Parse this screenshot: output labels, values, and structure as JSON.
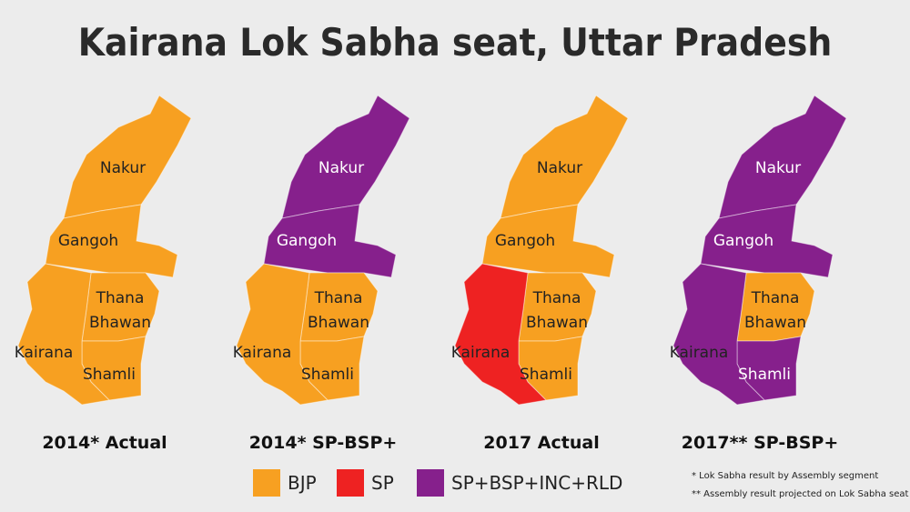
{
  "header": {
    "title": "Kairana Lok Sabha seat, Uttar Pradesh"
  },
  "maps": [
    {
      "caption": "2014* Actual",
      "regions": [
        {
          "label": "Nakur",
          "party": "BJP"
        },
        {
          "label": "Gangoh",
          "party": "BJP"
        },
        {
          "label": "Thana Bhawan",
          "party": "BJP"
        },
        {
          "label": "Shamli",
          "party": "BJP"
        },
        {
          "label": "Kairana",
          "party": "BJP"
        }
      ]
    },
    {
      "caption": "2014* SP-BSP+",
      "regions": [
        {
          "label": "Nakur",
          "party": "SP+BSP+INC+RLD"
        },
        {
          "label": "Gangoh",
          "party": "SP+BSP+INC+RLD"
        },
        {
          "label": "Thana Bhawan",
          "party": "BJP"
        },
        {
          "label": "Shamli",
          "party": "BJP"
        },
        {
          "label": "Kairana",
          "party": "BJP"
        }
      ]
    },
    {
      "caption": "2017 Actual",
      "regions": [
        {
          "label": "Nakur",
          "party": "BJP"
        },
        {
          "label": "Gangoh",
          "party": "BJP"
        },
        {
          "label": "Thana Bhawan",
          "party": "BJP"
        },
        {
          "label": "Shamli",
          "party": "BJP"
        },
        {
          "label": "Kairana",
          "party": "SP"
        }
      ]
    },
    {
      "caption": "2017** SP-BSP+",
      "regions": [
        {
          "label": "Nakur",
          "party": "SP+BSP+INC+RLD"
        },
        {
          "label": "Gangoh",
          "party": "SP+BSP+INC+RLD"
        },
        {
          "label": "Thana Bhawan",
          "party": "BJP"
        },
        {
          "label": "Shamli",
          "party": "SP+BSP+INC+RLD"
        },
        {
          "label": "Kairana",
          "party": "SP+BSP+INC+RLD"
        }
      ]
    }
  ],
  "legend": [
    {
      "label": "BJP",
      "color": "#f7a021"
    },
    {
      "label": "SP",
      "color": "#ee2222"
    },
    {
      "label": "SP+BSP+INC+RLD",
      "color": "#86208c"
    }
  ],
  "footnotes": [
    "* Lok Sabha result by Assembly segment",
    "** Assembly result projected on Lok Sabha seat"
  ]
}
